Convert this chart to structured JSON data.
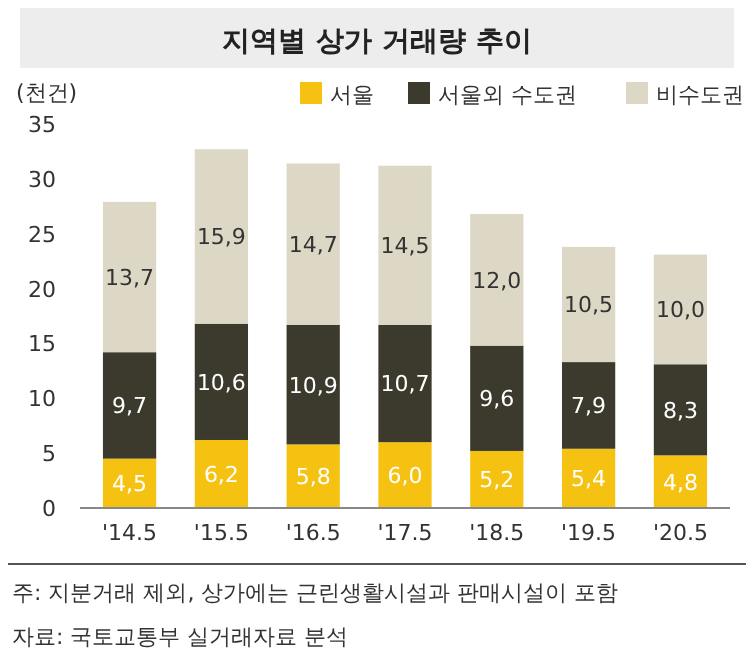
{
  "chart_data": {
    "type": "bar",
    "title": "지역별 상가 거래량 추이",
    "ylabel": "(천건)",
    "stacked": true,
    "legend": "top",
    "grid": false,
    "categories": [
      "'14.5",
      "'15.5",
      "'16.5",
      "'17.5",
      "'18.5",
      "'19.5",
      "'20.5"
    ],
    "ylim": [
      0,
      35
    ],
    "yticks": [
      0,
      5,
      10,
      15,
      20,
      25,
      30,
      35
    ],
    "series": [
      {
        "name": "서울",
        "color": "#f5c211",
        "values": [
          4.5,
          6.2,
          5.8,
          6.0,
          5.2,
          5.4,
          4.8
        ],
        "value_labels": [
          "4,5",
          "6,2",
          "5,8",
          "6,0",
          "5,2",
          "5,4",
          "4,8"
        ]
      },
      {
        "name": "서울외 수도권",
        "color": "#3b3a2c",
        "values": [
          9.7,
          10.6,
          10.9,
          10.7,
          9.6,
          7.9,
          8.3
        ],
        "value_labels": [
          "9,7",
          "10,6",
          "10,9",
          "10,7",
          "9,6",
          "7,9",
          "8,3"
        ]
      },
      {
        "name": "비수도권",
        "color": "#ddd8c5",
        "values": [
          13.7,
          15.9,
          14.7,
          14.5,
          12.0,
          10.5,
          10.0
        ],
        "value_labels": [
          "13,7",
          "15,9",
          "14,7",
          "14,5",
          "12,0",
          "10,5",
          "10,0"
        ]
      }
    ],
    "annotations": [
      "주: 지분거래 제외, 상가에는 근린생활시설과 판매시설이 포함",
      "자료: 국토교통부 실거래자료 분석"
    ]
  }
}
